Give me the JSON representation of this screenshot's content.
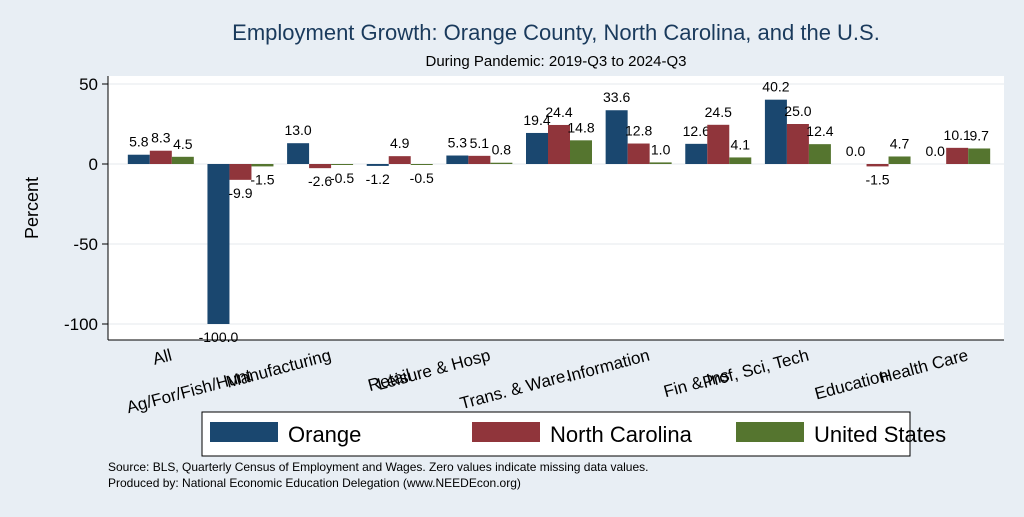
{
  "chart_data": {
    "type": "bar",
    "title": "Employment Growth: Orange County, North Carolina, and the U.S.",
    "subtitle": "During Pandemic: 2019-Q3 to 2024-Q3",
    "xlabel": "",
    "ylabel": "Percent",
    "ylim": [
      -110,
      55
    ],
    "yticks": [
      50,
      0,
      -50,
      -100
    ],
    "grid": true,
    "legend_position": "bottom",
    "categories": [
      "All",
      "Ag/For/Fish/Hunt",
      "Manufacturing",
      "Retail",
      "Leisure & Hosp",
      "Trans. & Ware.",
      "Information",
      "Fin & Ins",
      "Prof, Sci, Tech",
      "Education",
      "Health Care"
    ],
    "series": [
      {
        "name": "Orange",
        "color": "#1a476f",
        "values": [
          5.8,
          -100.0,
          13.0,
          -1.2,
          5.3,
          19.4,
          33.6,
          12.6,
          40.2,
          0.0,
          0.0
        ]
      },
      {
        "name": "North Carolina",
        "color": "#90353b",
        "values": [
          8.3,
          -9.9,
          -2.6,
          4.9,
          5.1,
          24.4,
          12.8,
          24.5,
          25.0,
          -1.5,
          10.1
        ]
      },
      {
        "name": "United States",
        "color": "#55752f",
        "values": [
          4.5,
          -1.5,
          -0.5,
          -0.5,
          0.8,
          14.8,
          1.0,
          4.1,
          12.4,
          4.7,
          9.7
        ]
      }
    ],
    "notes": [
      "Source: BLS, Quarterly Census of Employment and Wages. Zero values indicate missing data values.",
      "Produced by: National Economic Education Delegation (www.NEEDEcon.org)"
    ]
  }
}
